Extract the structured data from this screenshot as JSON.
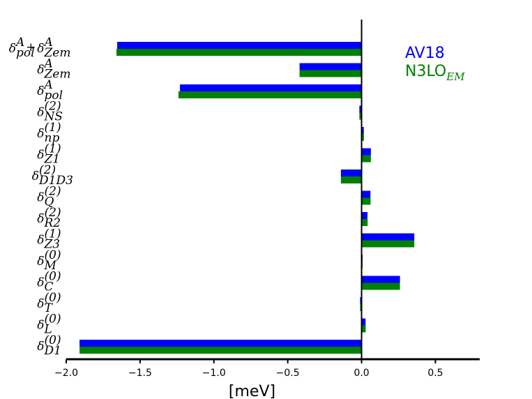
{
  "chart_data": {
    "type": "bar",
    "orientation": "horizontal",
    "categories": [
      {
        "base": "δ",
        "sup": "A",
        "sub": "pol",
        "plus": {
          "base": "δ",
          "sup": "A",
          "sub": "Zem"
        }
      },
      {
        "base": "δ",
        "sup": "A",
        "sub": "Zem"
      },
      {
        "base": "δ",
        "sup": "A",
        "sub": "pol"
      },
      {
        "base": "δ",
        "sup": "(2)",
        "sub": "NS"
      },
      {
        "base": "δ",
        "sup": "(1)",
        "sub": "np"
      },
      {
        "base": "δ",
        "sup": "(1)",
        "sub": "Z1"
      },
      {
        "base": "δ",
        "sup": "(2)",
        "sub": "D1D3"
      },
      {
        "base": "δ",
        "sup": "(2)",
        "sub": "Q"
      },
      {
        "base": "δ",
        "sup": "(2)",
        "sub": "R2"
      },
      {
        "base": "δ",
        "sup": "(1)",
        "sub": "Z3"
      },
      {
        "base": "δ",
        "sup": "(0)",
        "sub": "M"
      },
      {
        "base": "δ",
        "sup": "(0)",
        "sub": "C"
      },
      {
        "base": "δ",
        "sup": "(0)",
        "sub": "T"
      },
      {
        "base": "δ",
        "sup": "(0)",
        "sub": "L"
      },
      {
        "base": "δ",
        "sup": "(0)",
        "sub": "D1"
      }
    ],
    "series": [
      {
        "name": "AV18",
        "name_sub": "",
        "color": "#0000ff",
        "values": [
          -1.655,
          -0.42,
          -1.23,
          -0.015,
          0.015,
          0.063,
          -0.14,
          0.06,
          0.04,
          0.357,
          0.005,
          0.26,
          -0.01,
          0.027,
          -1.91
        ]
      },
      {
        "name": "N3LO",
        "name_sub": "EM",
        "color": "#008000",
        "values": [
          -1.66,
          -0.42,
          -1.24,
          -0.015,
          0.016,
          0.063,
          -0.14,
          0.061,
          0.041,
          0.357,
          0.005,
          0.26,
          -0.01,
          0.028,
          -1.91
        ]
      }
    ],
    "xlabel": "[meV]",
    "xlim": [
      -2.0,
      0.8
    ],
    "xticks": [
      -2.0,
      -1.5,
      -1.0,
      -0.5,
      0.0,
      0.5
    ],
    "xtick_labels": [
      "−2.0",
      "−1.5",
      "−1.0",
      "−0.5",
      "0.0",
      "0.5"
    ],
    "grid": false,
    "legend_position": "top-right"
  }
}
